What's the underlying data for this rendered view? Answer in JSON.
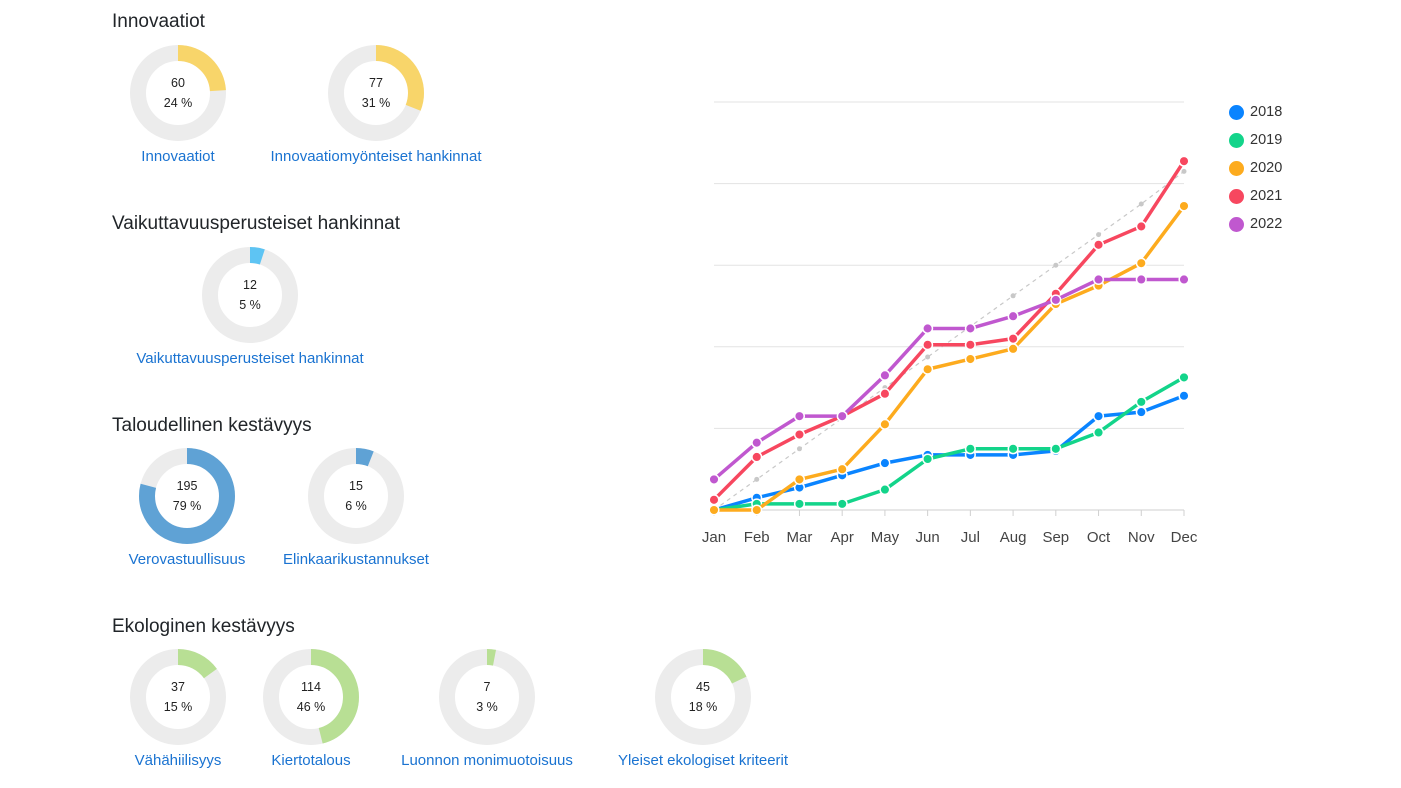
{
  "sections": [
    {
      "title": "Innovaatiot",
      "donuts": [
        {
          "count": "60",
          "percent_label": "24 %",
          "percent": 24,
          "link": "Innovaatiot",
          "color": "#f8d56a"
        },
        {
          "count": "77",
          "percent_label": "31 %",
          "percent": 31,
          "link": "Innovaatiomyönteiset hankinnat",
          "color": "#f8d56a"
        }
      ]
    },
    {
      "title": "Vaikuttavuusperusteiset hankinnat",
      "donuts": [
        {
          "count": "12",
          "percent_label": "5 %",
          "percent": 5,
          "link": "Vaikuttavuusperusteiset hankinnat",
          "color": "#5ec4f3"
        }
      ]
    },
    {
      "title": "Taloudellinen kestävyys",
      "donuts": [
        {
          "count": "195",
          "percent_label": "79 %",
          "percent": 79,
          "link": "Verovastuullisuus",
          "color": "#5fa2d5"
        },
        {
          "count": "15",
          "percent_label": "6 %",
          "percent": 6,
          "link": "Elinkaarikustannukset",
          "color": "#5fa2d5"
        }
      ]
    },
    {
      "title": "Ekologinen kestävyys",
      "donuts": [
        {
          "count": "37",
          "percent_label": "15 %",
          "percent": 15,
          "link": "Vähähiilisyys",
          "color": "#b8df94"
        },
        {
          "count": "114",
          "percent_label": "46 %",
          "percent": 46,
          "link": "Kiertotalous",
          "color": "#b8df94"
        },
        {
          "count": "7",
          "percent_label": "3 %",
          "percent": 3,
          "link": "Luonnon monimuotoisuus",
          "color": "#b8df94"
        },
        {
          "count": "45",
          "percent_label": "18 %",
          "percent": 18,
          "link": "Yleiset ekologiset kriteerit",
          "color": "#b8df94"
        }
      ]
    }
  ],
  "chart_data": {
    "type": "line",
    "categories": [
      "Jan",
      "Feb",
      "Mar",
      "Apr",
      "May",
      "Jun",
      "Jul",
      "Aug",
      "Sep",
      "Oct",
      "Nov",
      "Dec"
    ],
    "ylim": [
      0,
      100
    ],
    "grid": true,
    "legend_position": "right",
    "series": [
      {
        "name": "2018",
        "color": "#0a84ff",
        "values": [
          0,
          3,
          5.5,
          8.5,
          11.5,
          13.5,
          13.5,
          13.5,
          14.5,
          23,
          24,
          28
        ]
      },
      {
        "name": "2019",
        "color": "#13d48a",
        "values": [
          0,
          1.5,
          1.5,
          1.5,
          5,
          12.5,
          15,
          15,
          15,
          19,
          26.5,
          32.5
        ]
      },
      {
        "name": "2020",
        "color": "#fdab1e",
        "values": [
          0,
          0,
          7.5,
          10,
          21,
          34.5,
          37,
          39.5,
          50.5,
          55,
          60.5,
          74.5
        ]
      },
      {
        "name": "2021",
        "color": "#f7475f",
        "values": [
          2.5,
          13,
          18.5,
          23,
          28.5,
          40.5,
          40.5,
          42,
          53,
          65,
          69.5,
          85.5
        ]
      },
      {
        "name": "2022",
        "color": "#c058cf",
        "values": [
          7.5,
          16.5,
          23,
          23,
          33,
          44.5,
          44.5,
          47.5,
          51.5,
          56.5,
          56.5,
          56.5
        ]
      }
    ],
    "reference_line": {
      "color": "#c8c8c8",
      "values": [
        0,
        7.5,
        15,
        22.5,
        30,
        37.5,
        45,
        52.5,
        60,
        67.5,
        75,
        83
      ]
    }
  }
}
